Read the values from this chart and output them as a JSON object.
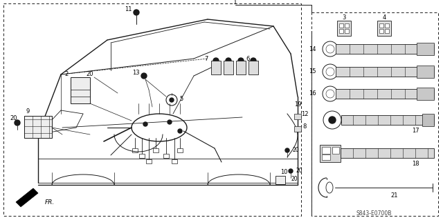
{
  "bg_color": "#ffffff",
  "line_color": "#1a1a1a",
  "diagram_code": "S843-E0700B",
  "fig_width": 6.4,
  "fig_height": 3.19
}
